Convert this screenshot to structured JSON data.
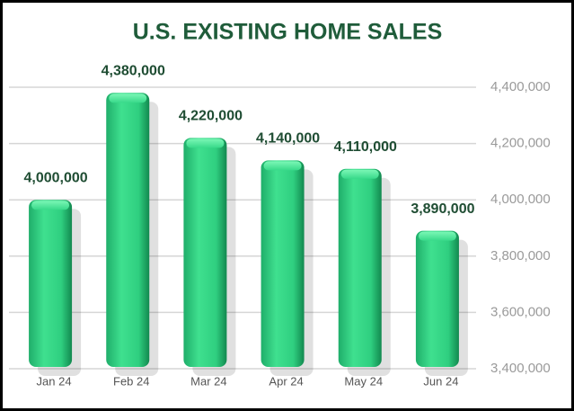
{
  "chart_data": {
    "type": "bar",
    "title": "U.S. EXISTING HOME SALES",
    "categories": [
      "Jan 24",
      "Feb 24",
      "Mar 24",
      "Apr 24",
      "May 24",
      "Jun 24"
    ],
    "values": [
      4000000,
      4380000,
      4220000,
      4140000,
      4110000,
      3890000
    ],
    "value_labels": [
      "4,000,000",
      "4,380,000",
      "4,220,000",
      "4,140,000",
      "4,110,000",
      "3,890,000"
    ],
    "color": "#2fcf80",
    "ylim": [
      3400000,
      4400000
    ],
    "yticks": [
      {
        "value": 3400000,
        "label": "3,400,000"
      },
      {
        "value": 3600000,
        "label": "3,600,000"
      },
      {
        "value": 3800000,
        "label": "3,800,000"
      },
      {
        "value": 4000000,
        "label": "4,000,000"
      },
      {
        "value": 4200000,
        "label": "4,200,000"
      },
      {
        "value": 4400000,
        "label": "4,400,000"
      }
    ],
    "grid": true
  }
}
